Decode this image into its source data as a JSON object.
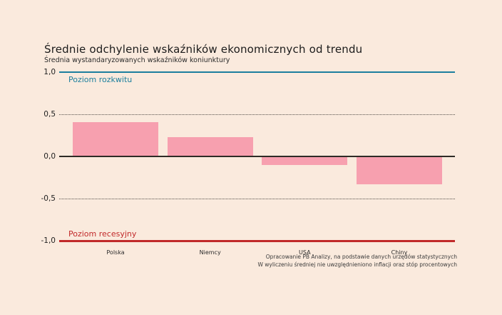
{
  "background": "#faeadd",
  "chart_data": {
    "type": "bar",
    "title": "Średnie odchylenie wskaźników ekonomicznych od trendu",
    "subtitle": "Średnia wystandaryzowanych wskaźników koniunktury",
    "categories": [
      "Polska",
      "Niemcy",
      "USA",
      "Chiny"
    ],
    "values": [
      0.41,
      0.23,
      -0.09,
      -0.32
    ],
    "bar_color": "#f7a0af",
    "ylim": [
      -1.0,
      1.0
    ],
    "yticks": [
      {
        "value": 1.0,
        "label": "1,0"
      },
      {
        "value": 0.5,
        "label": "0,5"
      },
      {
        "value": 0.0,
        "label": "0,0"
      },
      {
        "value": -0.5,
        "label": "-0,5"
      },
      {
        "value": -1.0,
        "label": "-1,0"
      }
    ],
    "gridlines": [
      {
        "value": 0.5,
        "style": "dotted",
        "color": "#55504a"
      },
      {
        "value": 0.0,
        "style": "solid",
        "color": "#2e2b26"
      },
      {
        "value": -0.5,
        "style": "dotted",
        "color": "#55504a"
      }
    ],
    "reference_lines": [
      {
        "value": 1.0,
        "label": "Poziom rozkwitu",
        "color": "#1c7f9e",
        "label_position": "below"
      },
      {
        "value": -1.0,
        "label": "Poziom recesyjny",
        "color": "#c1292a",
        "label_position": "above"
      }
    ],
    "grid": "horizontal-only",
    "legend_position": "none",
    "source_lines": [
      "Opracowanie PB Analizy, na podstawie danych urzędów statystycznych",
      "W wyliczeniu średniej nie uwzględnieniono inflacji oraz stóp procentowych"
    ]
  }
}
